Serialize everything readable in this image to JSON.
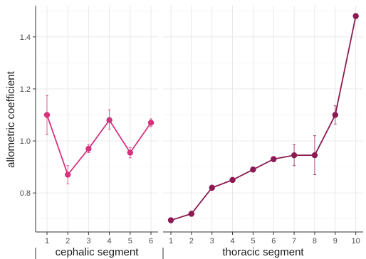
{
  "chart_data": {
    "type": "line",
    "title": "",
    "ylabel": "allometric coefficient",
    "ylim": [
      0.65,
      1.52
    ],
    "yticks": [
      0.8,
      1.0,
      1.2,
      1.4
    ],
    "ytick_labels": [
      "0.8",
      "1.0",
      "1.2",
      "1.4"
    ],
    "grid": true,
    "legend": "none",
    "panels": [
      {
        "xlabel": "cephalic segment",
        "color": "#d6337f",
        "x": [
          "1",
          "2",
          "3",
          "4",
          "5",
          "6"
        ],
        "values": [
          1.1,
          0.87,
          0.97,
          1.08,
          0.955,
          1.07
        ],
        "error_low": [
          1.025,
          0.835,
          0.955,
          1.045,
          0.935,
          1.055
        ],
        "error_high": [
          1.175,
          0.905,
          0.985,
          1.12,
          0.975,
          1.085
        ]
      },
      {
        "xlabel": "thoracic segment",
        "color": "#8c1a52",
        "x": [
          "1",
          "2",
          "3",
          "4",
          "5",
          "6",
          "7",
          "8",
          "9",
          "10"
        ],
        "values": [
          0.695,
          0.72,
          0.82,
          0.85,
          0.89,
          0.93,
          0.945,
          0.945,
          1.1,
          1.48
        ],
        "error_low": [
          0.685,
          0.71,
          0.81,
          0.84,
          0.88,
          0.92,
          0.905,
          0.87,
          1.065,
          1.47
        ],
        "error_high": [
          0.705,
          0.73,
          0.83,
          0.86,
          0.9,
          0.94,
          0.985,
          1.02,
          1.135,
          1.49
        ]
      }
    ]
  }
}
